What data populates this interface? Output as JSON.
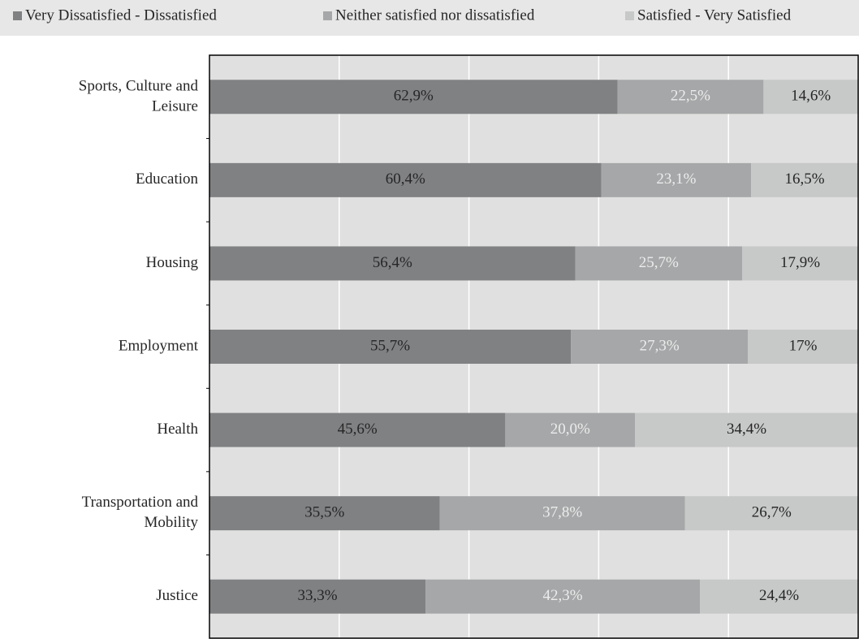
{
  "chart_data": {
    "type": "stacked_bar_horizontal",
    "categories": [
      "Sports, Culture and Leisure",
      "Education",
      "Housing",
      "Employment",
      "Health",
      "Transportation and Mobility",
      "Justice"
    ],
    "series": [
      {
        "name": "Very Dissatisfied - Dissatisfied",
        "color": "#808183",
        "values": [
          62.9,
          60.4,
          56.4,
          55.7,
          45.6,
          35.5,
          33.3
        ],
        "value_labels": [
          "62,9%",
          "60,4%",
          "56,4%",
          "55,7%",
          "45,6%",
          "35,5%",
          "33,3%"
        ]
      },
      {
        "name": "Neither satisfied nor dissatisfied",
        "color": "#a6a7a8",
        "values": [
          22.5,
          23.1,
          25.7,
          27.3,
          20.0,
          37.8,
          42.3
        ],
        "value_labels": [
          "22,5%",
          "23,1%",
          "25,7%",
          "27,3%",
          "20,0%",
          "37,8%",
          "42,3%"
        ]
      },
      {
        "name": "Satisfied - Very Satisfied",
        "color": "#c7c8c8",
        "values": [
          14.6,
          16.5,
          17.9,
          17,
          34.4,
          26.7,
          24.4
        ],
        "value_labels": [
          "14,6%",
          "16,5%",
          "17,9%",
          "17%",
          "34,4%",
          "26,7%",
          "24,4%"
        ]
      }
    ],
    "xlim": [
      0,
      100
    ],
    "xticks": [
      0,
      20,
      40,
      60,
      80,
      100
    ],
    "grid": true,
    "legend": "top"
  }
}
